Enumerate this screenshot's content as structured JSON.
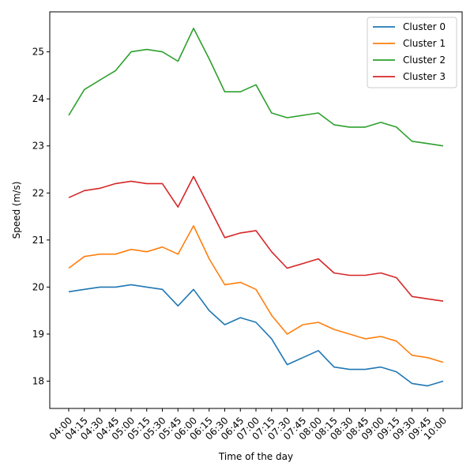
{
  "chart_data": {
    "type": "line",
    "title": "",
    "xlabel": "Time of the day",
    "ylabel": "Speed (m/s)",
    "ylim": [
      17.42,
      25.85
    ],
    "yticks": [
      18,
      19,
      20,
      21,
      22,
      23,
      24,
      25
    ],
    "x_ticks": [
      "04:00",
      "04:15",
      "04:30",
      "04:45",
      "05:00",
      "05:15",
      "05:30",
      "05:45",
      "06:00",
      "06:15",
      "06:30",
      "06:45",
      "07:00",
      "07:15",
      "07:30",
      "07:45",
      "08:00",
      "08:15",
      "08:30",
      "08:45",
      "09:00",
      "09:15",
      "09:30",
      "09:45",
      "10:00"
    ],
    "x": [
      "04:00",
      "04:15",
      "04:30",
      "04:45",
      "05:00",
      "05:15",
      "05:30",
      "05:45",
      "06:00",
      "06:15",
      "06:30",
      "06:45",
      "07:00",
      "07:15",
      "07:30",
      "07:45",
      "08:00",
      "08:15",
      "08:30",
      "08:45",
      "09:00",
      "09:15",
      "09:30",
      "09:45",
      "10:00"
    ],
    "grid": false,
    "legend": "top-right",
    "series": [
      {
        "name": "Cluster 0",
        "color": "#1f77b4",
        "values": [
          19.9,
          19.95,
          20.0,
          20.0,
          20.05,
          20.0,
          19.95,
          19.6,
          19.95,
          19.5,
          19.2,
          19.35,
          19.25,
          18.9,
          18.35,
          18.5,
          18.65,
          18.3,
          18.25,
          18.25,
          18.3,
          18.2,
          17.95,
          17.9,
          18.0
        ]
      },
      {
        "name": "Cluster 1",
        "color": "#ff7f0e",
        "values": [
          20.4,
          20.65,
          20.7,
          20.7,
          20.8,
          20.75,
          20.85,
          20.7,
          21.3,
          20.6,
          20.05,
          20.1,
          19.95,
          19.4,
          19.0,
          19.2,
          19.25,
          19.1,
          19.0,
          18.9,
          18.95,
          18.85,
          18.55,
          18.5,
          18.4
        ]
      },
      {
        "name": "Cluster 2",
        "color": "#2ca02c",
        "values": [
          23.65,
          24.2,
          24.4,
          24.6,
          25.0,
          25.05,
          25.0,
          24.8,
          25.5,
          24.85,
          24.15,
          24.15,
          24.3,
          23.7,
          23.6,
          23.65,
          23.7,
          23.45,
          23.4,
          23.4,
          23.5,
          23.4,
          23.1,
          23.05,
          23.0
        ]
      },
      {
        "name": "Cluster 3",
        "color": "#d62728",
        "values": [
          21.9,
          22.05,
          22.1,
          22.2,
          22.25,
          22.2,
          22.2,
          21.7,
          22.35,
          21.7,
          21.05,
          21.15,
          21.2,
          20.75,
          20.4,
          20.5,
          20.6,
          20.3,
          20.25,
          20.25,
          20.3,
          20.2,
          19.8,
          19.75,
          19.7
        ]
      }
    ]
  }
}
